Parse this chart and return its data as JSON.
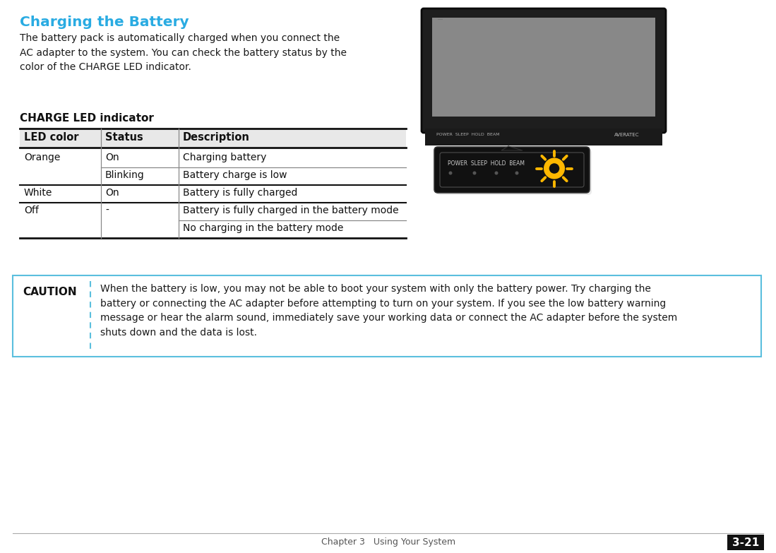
{
  "title": "Charging the Battery",
  "title_color": "#29abe2",
  "bg_color": "#ffffff",
  "body_text": "The battery pack is automatically charged when you connect the\nAC adapter to the system. You can check the battery status by the\ncolor of the CHARGE LED indicator.",
  "table_header_label": "CHARGE LED indicator",
  "table_cols": [
    "LED color",
    "Status",
    "Description"
  ],
  "table_rows": [
    [
      "Orange",
      "On",
      "Charging battery"
    ],
    [
      "",
      "Blinking",
      "Battery charge is low"
    ],
    [
      "White",
      "On",
      "Battery is fully charged"
    ],
    [
      "Off",
      "-",
      "Battery is fully charged in the battery mode"
    ],
    [
      "",
      "",
      "No charging in the battery mode"
    ]
  ],
  "caution_label": "CAUTION",
  "caution_text": "When the battery is low, you may not be able to boot your system with only the battery power. Try charging the\nbattery or connecting the AC adapter before attempting to turn on your system. If you see the low battery warning\nmessage or hear the alarm sound, immediately save your working data or connect the AC adapter before the system\nshuts down and the data is lost.",
  "footer_text": "Chapter 3   Using Your System",
  "footer_right": "3-21",
  "caution_border_color": "#5bbfde",
  "caution_divider_color": "#5bbfde",
  "sun_color": "#FFB800",
  "laptop_dark": "#1e1e1e",
  "laptop_bar": "#111111",
  "laptop_screen": "#888888"
}
